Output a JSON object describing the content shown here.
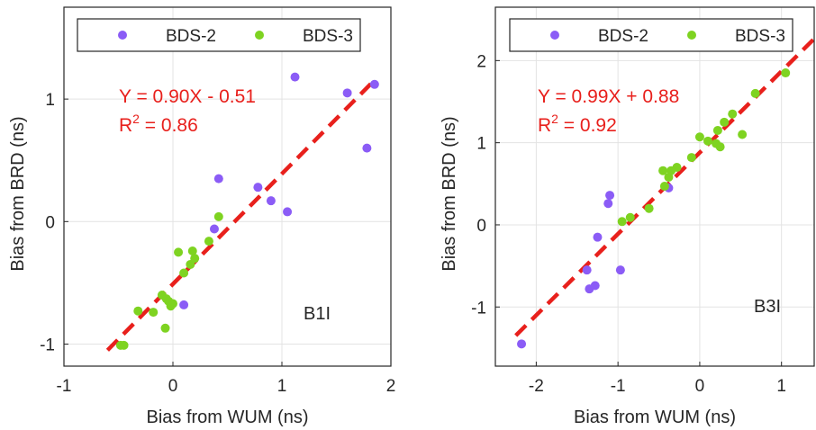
{
  "chart_data": [
    {
      "type": "scatter",
      "xlabel": "Bias from WUM (ns)",
      "ylabel": "Bias from BRD (ns)",
      "xlim": [
        -1,
        2
      ],
      "ylim": [
        -1.18,
        1.75
      ],
      "xticks": [
        -1,
        0,
        1,
        2
      ],
      "yticks": [
        -1,
        0,
        1
      ],
      "xtick_labels": [
        "-1",
        "0",
        "1",
        "2"
      ],
      "ytick_labels": [
        "-1",
        "0",
        "1"
      ],
      "grid": true,
      "legend_position": "top",
      "series": [
        {
          "name": "BDS-2",
          "color": "#8b5cf6",
          "points": [
            [
              1.12,
              1.18
            ],
            [
              1.6,
              1.05
            ],
            [
              1.85,
              1.12
            ],
            [
              1.78,
              0.6
            ],
            [
              0.42,
              0.35
            ],
            [
              0.78,
              0.28
            ],
            [
              0.9,
              0.17
            ],
            [
              1.05,
              0.08
            ],
            [
              0.38,
              -0.06
            ],
            [
              0.1,
              -0.68
            ]
          ]
        },
        {
          "name": "BDS-3",
          "color": "#7ed321",
          "points": [
            [
              -0.48,
              -1.01
            ],
            [
              -0.45,
              -1.01
            ],
            [
              -0.32,
              -0.73
            ],
            [
              -0.18,
              -0.74
            ],
            [
              -0.1,
              -0.6
            ],
            [
              -0.06,
              -0.63
            ],
            [
              -0.04,
              -0.65
            ],
            [
              -0.02,
              -0.69
            ],
            [
              0.0,
              -0.67
            ],
            [
              -0.07,
              -0.87
            ],
            [
              0.05,
              -0.25
            ],
            [
              0.1,
              -0.42
            ],
            [
              0.16,
              -0.35
            ],
            [
              0.18,
              -0.24
            ],
            [
              0.2,
              -0.3
            ],
            [
              0.33,
              -0.16
            ],
            [
              0.42,
              0.04
            ]
          ]
        }
      ],
      "fit_line": {
        "slope": 0.9,
        "intercept": -0.51,
        "x_range": [
          -0.6,
          1.85
        ],
        "color": "#e8201c"
      },
      "annotations": {
        "equation": "Y = 0.90X - 0.51",
        "r2_label": "R",
        "r2_sup": "2",
        "r2_value": " = 0.86",
        "band": "B1I",
        "color": "#e8201c"
      }
    },
    {
      "type": "scatter",
      "xlabel": "Bias from WUM (ns)",
      "ylabel": "Bias from BRD (ns)",
      "xlim": [
        -2.5,
        1.4
      ],
      "ylim": [
        -1.72,
        2.65
      ],
      "xticks": [
        -2,
        -1,
        0,
        1
      ],
      "yticks": [
        -1,
        0,
        1,
        2
      ],
      "xtick_labels": [
        "-2",
        "-1",
        "0",
        "1"
      ],
      "ytick_labels": [
        "-1",
        "0",
        "1",
        "2"
      ],
      "grid": true,
      "legend_position": "top",
      "series": [
        {
          "name": "BDS-2",
          "color": "#8b5cf6",
          "points": [
            [
              -1.1,
              0.36
            ],
            [
              -1.12,
              0.26
            ],
            [
              -1.25,
              -0.15
            ],
            [
              -1.38,
              -0.55
            ],
            [
              -1.35,
              -0.78
            ],
            [
              -1.28,
              -0.74
            ],
            [
              -0.97,
              -0.55
            ],
            [
              -0.38,
              0.45
            ],
            [
              -2.18,
              -1.45
            ]
          ]
        },
        {
          "name": "BDS-3",
          "color": "#7ed321",
          "points": [
            [
              1.05,
              1.85
            ],
            [
              0.68,
              1.6
            ],
            [
              0.4,
              1.35
            ],
            [
              0.3,
              1.25
            ],
            [
              0.22,
              1.15
            ],
            [
              0.52,
              1.1
            ],
            [
              0.0,
              1.07
            ],
            [
              0.1,
              1.02
            ],
            [
              0.2,
              0.99
            ],
            [
              0.25,
              0.95
            ],
            [
              -0.1,
              0.82
            ],
            [
              -0.28,
              0.7
            ],
            [
              -0.35,
              0.66
            ],
            [
              -0.45,
              0.66
            ],
            [
              -0.38,
              0.58
            ],
            [
              -0.43,
              0.47
            ],
            [
              -0.95,
              0.04
            ],
            [
              -0.85,
              0.09
            ],
            [
              -0.62,
              0.2
            ]
          ]
        }
      ],
      "fit_line": {
        "slope": 0.99,
        "intercept": 0.88,
        "x_range": [
          -2.25,
          1.4
        ],
        "color": "#e8201c"
      },
      "annotations": {
        "equation": "Y = 0.99X + 0.88",
        "r2_label": "R",
        "r2_sup": "2",
        "r2_value": " = 0.92",
        "band": "B3I",
        "color": "#e8201c"
      }
    }
  ]
}
